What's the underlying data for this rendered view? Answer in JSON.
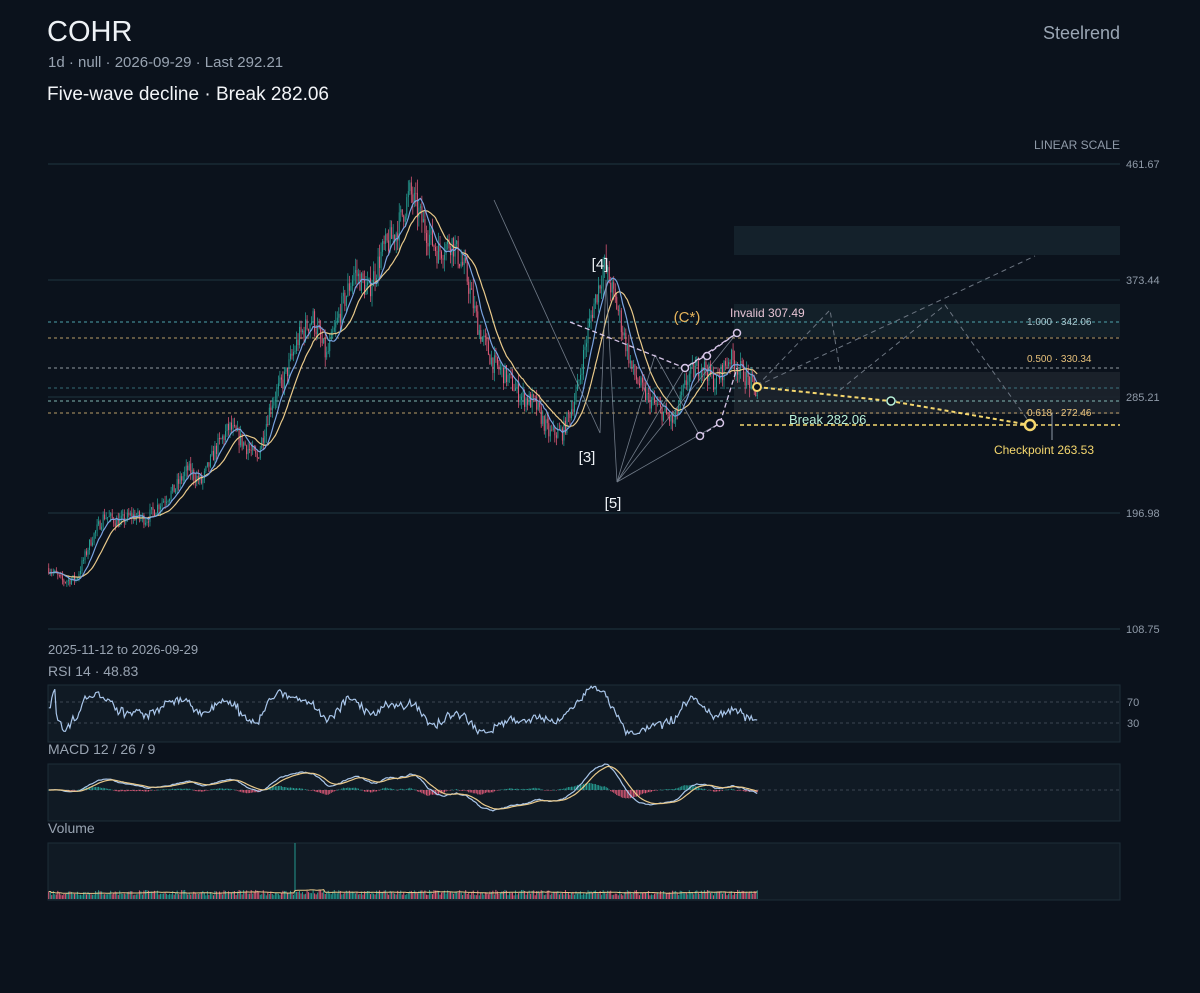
{
  "header": {
    "ticker": "COHR",
    "meta": "1d · null · 2026-09-29 · Last 292.21",
    "headline": "Five-wave decline · Break 282.06",
    "brand": "Steelrend"
  },
  "colors": {
    "background": "#0b121c",
    "up": "#26a69a",
    "down": "#ef5f7f",
    "ma_fast": "#7aa3e0",
    "ma_slow": "#e9c98a",
    "projection": "#f5d76e",
    "accent": "#e6b45c"
  },
  "chart_data": {
    "type": "candlestick",
    "scale_label": "LINEAR SCALE",
    "y_ticks": [
      "461.67",
      "373.44",
      "285.21",
      "196.98",
      "108.75"
    ],
    "ylim": [
      108.75,
      461.67
    ],
    "date_range": "2025-11-12 to 2026-09-29",
    "last": 292.21,
    "wave_labels": [
      "[3]",
      "[4]",
      "[5]",
      "(C*)"
    ],
    "invalid_label": "Invalid 307.49",
    "invalid_level": 307.49,
    "break_label": "Break 282.06",
    "break_level": 282.06,
    "checkpoint_label": "Checkpoint 263.53",
    "checkpoint_level": 263.53,
    "fib_labels": [
      "1.000 · 342.06",
      "0.500 · 330.34",
      "0.618 · 272.46"
    ],
    "fib_levels": [
      342.06,
      330.34,
      272.46
    ],
    "price_path": [
      [
        0,
        155
      ],
      [
        10,
        145
      ],
      [
        20,
        147
      ],
      [
        30,
        175
      ],
      [
        40,
        195
      ],
      [
        50,
        190
      ],
      [
        60,
        195
      ],
      [
        70,
        192
      ],
      [
        80,
        204
      ],
      [
        90,
        214
      ],
      [
        100,
        230
      ],
      [
        110,
        220
      ],
      [
        120,
        245
      ],
      [
        130,
        262
      ],
      [
        140,
        250
      ],
      [
        150,
        238
      ],
      [
        160,
        280
      ],
      [
        170,
        300
      ],
      [
        180,
        330
      ],
      [
        190,
        345
      ],
      [
        200,
        315
      ],
      [
        210,
        350
      ],
      [
        220,
        380
      ],
      [
        230,
        365
      ],
      [
        240,
        395
      ],
      [
        250,
        410
      ],
      [
        260,
        440
      ],
      [
        270,
        415
      ],
      [
        280,
        395
      ],
      [
        290,
        403
      ],
      [
        300,
        380
      ],
      [
        310,
        335
      ],
      [
        320,
        310
      ],
      [
        330,
        300
      ],
      [
        340,
        285
      ],
      [
        350,
        280
      ],
      [
        360,
        257
      ],
      [
        370,
        258
      ],
      [
        380,
        288
      ],
      [
        390,
        345
      ],
      [
        400,
        385
      ],
      [
        410,
        350
      ],
      [
        420,
        305
      ],
      [
        430,
        285
      ],
      [
        440,
        275
      ],
      [
        450,
        265
      ],
      [
        460,
        300
      ],
      [
        470,
        310
      ],
      [
        480,
        295
      ],
      [
        490,
        315
      ],
      [
        500,
        303
      ],
      [
        510,
        288
      ]
    ],
    "n_bars": 470,
    "ma_periods": [
      10,
      20
    ]
  },
  "panels": {
    "rsi": {
      "title": "RSI 14 · 48.83",
      "levels": [
        "70",
        "30"
      ],
      "value": 48.83
    },
    "macd": {
      "title": "MACD 12 / 26 / 9"
    },
    "volume": {
      "title": "Volume"
    }
  }
}
